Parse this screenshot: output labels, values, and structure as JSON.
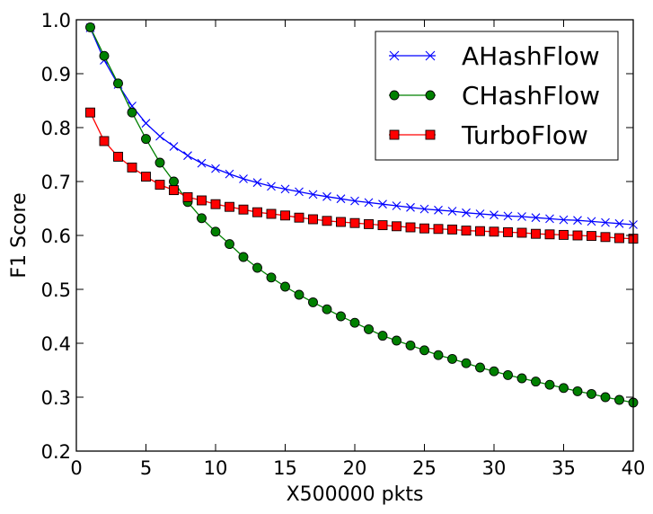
{
  "chart_data": {
    "type": "line",
    "xlabel": "X500000 pkts",
    "ylabel": "F1 Score",
    "xlim": [
      0,
      40
    ],
    "ylim": [
      0.2,
      1.0
    ],
    "xticks": [
      "0",
      "5",
      "10",
      "15",
      "20",
      "25",
      "30",
      "35",
      "40"
    ],
    "yticks": [
      "0.2",
      "0.3",
      "0.4",
      "0.5",
      "0.6",
      "0.7",
      "0.8",
      "0.9",
      "1.0"
    ],
    "legend_position": "top-right",
    "grid": false,
    "x": [
      1,
      2,
      3,
      4,
      5,
      6,
      7,
      8,
      9,
      10,
      11,
      12,
      13,
      14,
      15,
      16,
      17,
      18,
      19,
      20,
      21,
      22,
      23,
      24,
      25,
      26,
      27,
      28,
      29,
      30,
      31,
      32,
      33,
      34,
      35,
      36,
      37,
      38,
      39,
      40
    ],
    "series": [
      {
        "name": "AHashFlow",
        "color": "#0000ff",
        "marker": "x",
        "values": [
          0.985,
          0.925,
          0.88,
          0.84,
          0.808,
          0.784,
          0.765,
          0.748,
          0.734,
          0.724,
          0.714,
          0.705,
          0.698,
          0.691,
          0.686,
          0.681,
          0.676,
          0.672,
          0.668,
          0.664,
          0.661,
          0.658,
          0.655,
          0.652,
          0.649,
          0.647,
          0.645,
          0.642,
          0.64,
          0.638,
          0.636,
          0.635,
          0.633,
          0.631,
          0.629,
          0.628,
          0.626,
          0.624,
          0.622,
          0.62
        ]
      },
      {
        "name": "CHashFlow",
        "color": "#008000",
        "marker": "o",
        "values": [
          0.986,
          0.933,
          0.882,
          0.828,
          0.779,
          0.735,
          0.7,
          0.662,
          0.632,
          0.607,
          0.584,
          0.56,
          0.54,
          0.522,
          0.505,
          0.49,
          0.476,
          0.463,
          0.45,
          0.438,
          0.426,
          0.414,
          0.405,
          0.396,
          0.387,
          0.378,
          0.371,
          0.363,
          0.355,
          0.348,
          0.341,
          0.335,
          0.329,
          0.323,
          0.317,
          0.311,
          0.306,
          0.3,
          0.295,
          0.29
        ]
      },
      {
        "name": "TurboFlow",
        "color": "#ff0000",
        "marker": "s",
        "values": [
          0.828,
          0.775,
          0.746,
          0.726,
          0.709,
          0.694,
          0.684,
          0.671,
          0.665,
          0.658,
          0.653,
          0.648,
          0.643,
          0.64,
          0.637,
          0.633,
          0.63,
          0.627,
          0.625,
          0.623,
          0.621,
          0.619,
          0.617,
          0.615,
          0.613,
          0.612,
          0.611,
          0.609,
          0.608,
          0.607,
          0.606,
          0.605,
          0.603,
          0.602,
          0.601,
          0.6,
          0.599,
          0.597,
          0.595,
          0.594
        ]
      }
    ]
  }
}
